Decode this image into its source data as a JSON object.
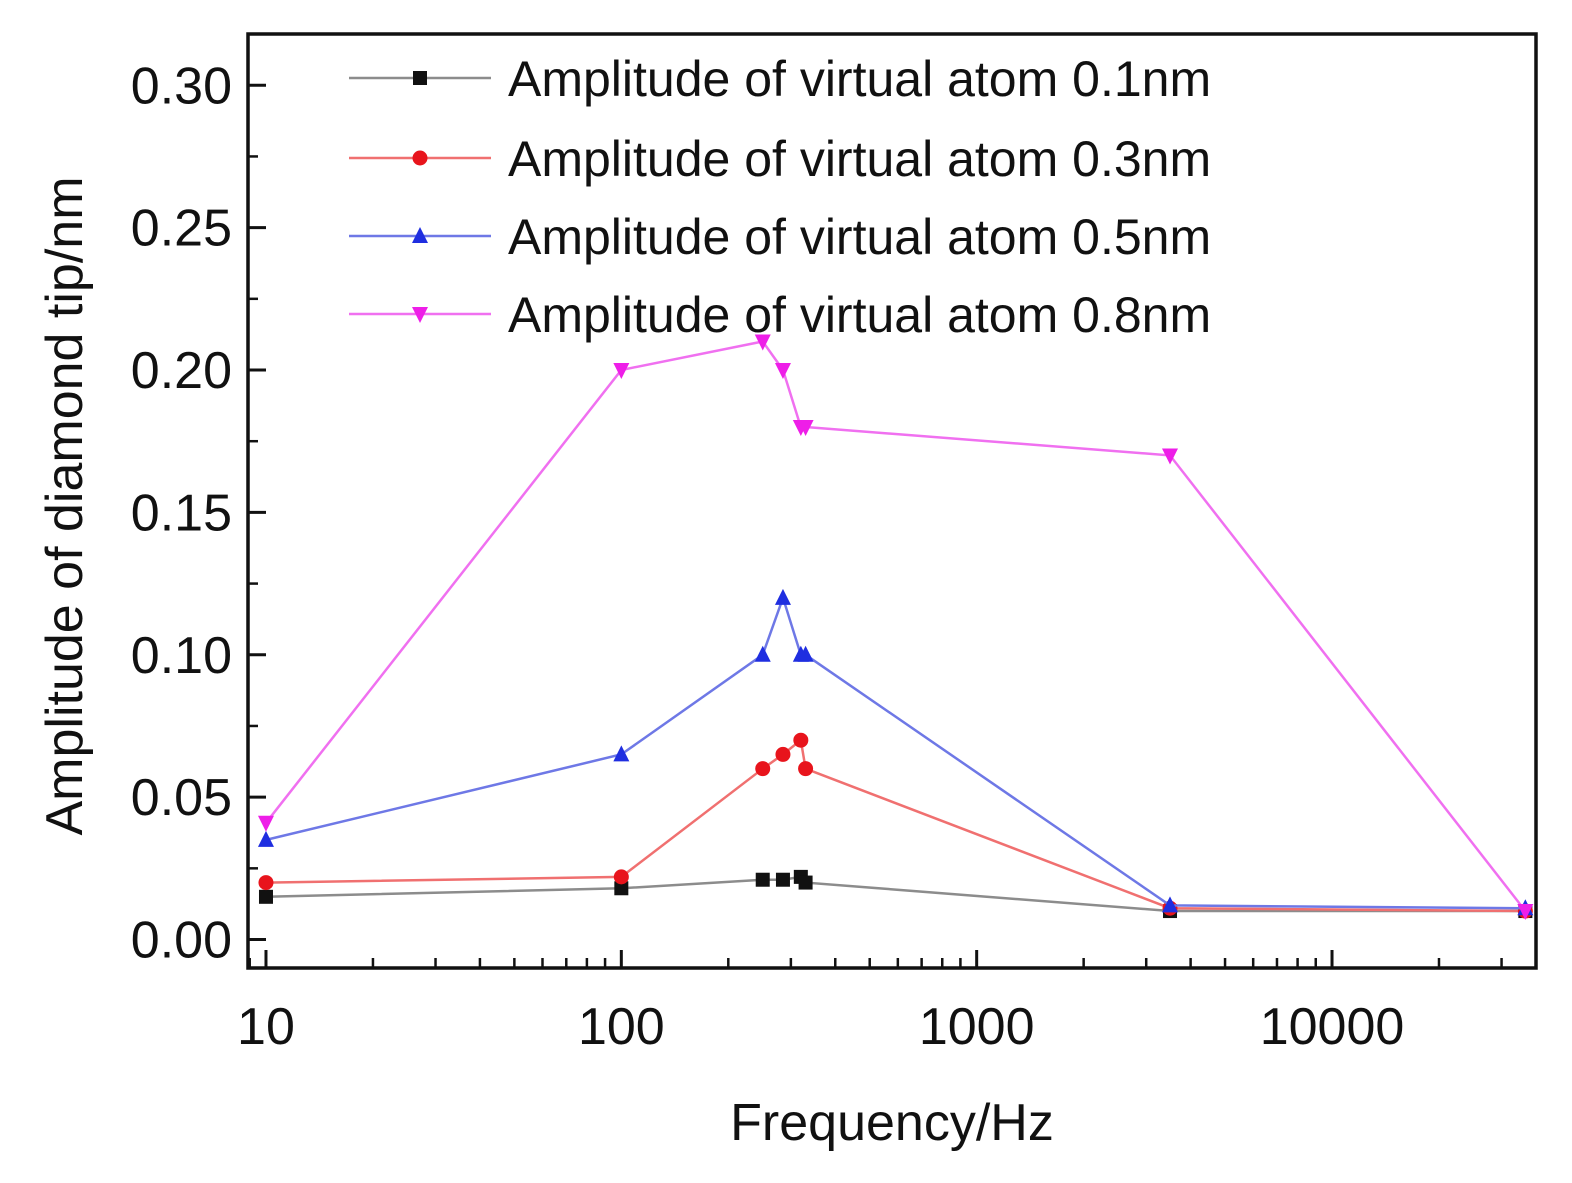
{
  "chart_data": {
    "type": "line",
    "title": "",
    "xlabel": "Frequency/Hz",
    "ylabel": "Amplitude of diamond tip/nm",
    "xscale": "log",
    "xlim": [
      8.9,
      37500
    ],
    "ylim": [
      -0.01,
      0.318
    ],
    "x_ticks": [
      10,
      100,
      1000,
      10000
    ],
    "x_tick_labels": [
      "10",
      "100",
      "1000",
      "10000"
    ],
    "y_ticks": [
      0.0,
      0.05,
      0.1,
      0.15,
      0.2,
      0.25,
      0.3
    ],
    "y_tick_labels": [
      "0.00",
      "0.05",
      "0.10",
      "0.15",
      "0.20",
      "0.25",
      "0.30"
    ],
    "legend_position": "top-right",
    "grid": false,
    "series": [
      {
        "name": "Amplitude of virtual atom 0.1nm",
        "color": "#111111",
        "line_color": "#8c8c8c",
        "marker": "square",
        "x": [
          10,
          100,
          250,
          285,
          320,
          330,
          3500,
          35000
        ],
        "y": [
          0.015,
          0.018,
          0.021,
          0.021,
          0.022,
          0.02,
          0.01,
          0.01
        ]
      },
      {
        "name": "Amplitude of virtual atom 0.3nm",
        "color": "#e8141c",
        "line_color": "#f07070",
        "marker": "circle",
        "x": [
          10,
          100,
          250,
          285,
          320,
          330,
          3500,
          35000
        ],
        "y": [
          0.02,
          0.022,
          0.06,
          0.065,
          0.07,
          0.06,
          0.011,
          0.01
        ]
      },
      {
        "name": "Amplitude of virtual atom 0.5nm",
        "color": "#1f2ee0",
        "line_color": "#6e78e6",
        "marker": "triangle-up",
        "x": [
          10,
          100,
          250,
          285,
          320,
          330,
          3500,
          35000
        ],
        "y": [
          0.035,
          0.065,
          0.1,
          0.12,
          0.1,
          0.1,
          0.012,
          0.011
        ]
      },
      {
        "name": "Amplitude of virtual atom 0.8nm",
        "color": "#ee1ee8",
        "line_color": "#f070f0",
        "marker": "triangle-down",
        "x": [
          10,
          100,
          250,
          285,
          320,
          330,
          3500,
          35000
        ],
        "y": [
          0.041,
          0.2,
          0.21,
          0.2,
          0.18,
          0.18,
          0.17,
          0.01
        ]
      }
    ]
  }
}
